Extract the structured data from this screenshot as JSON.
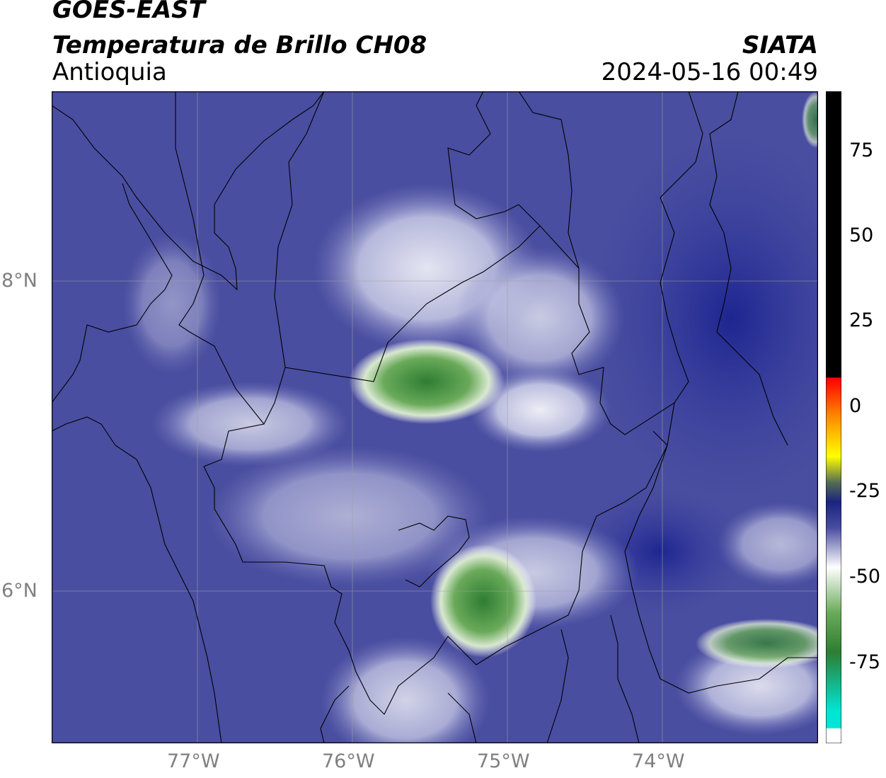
{
  "header": {
    "line1": "GOES-EAST",
    "line2": "Temperatura de Brillo CH08",
    "region": "Antioquia",
    "organization": "SIATA",
    "timestamp": "2024-05-16 00:49"
  },
  "map": {
    "lat_labels": [
      "8°N",
      "6°N"
    ],
    "lon_labels": [
      "77°W",
      "76°W",
      "75°W",
      "74°W"
    ],
    "background_color": "#4a4ea0"
  },
  "colorbar": {
    "ticks": [
      "75",
      "50",
      "25",
      "0",
      "-25",
      "-50",
      "-75"
    ],
    "colors": {
      "top": "#000000",
      "warm": "#ff0000",
      "mid": "#ffff00",
      "cold": "#1a237e",
      "white": "#ffffff",
      "green": "#2e7d32",
      "cyan": "#00e5d4"
    }
  }
}
